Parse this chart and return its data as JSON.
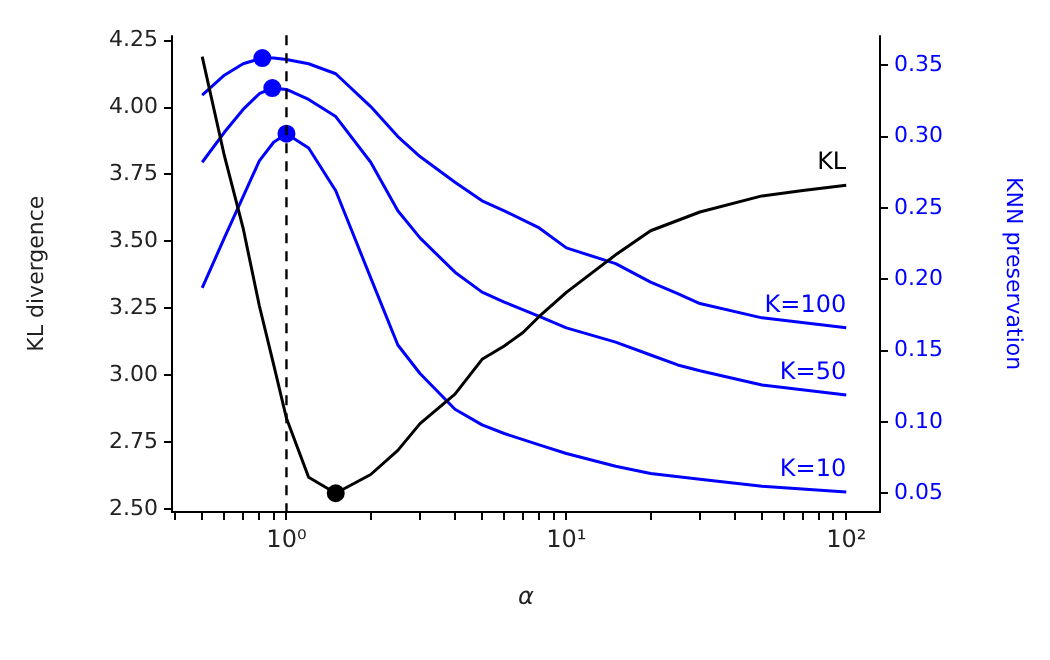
{
  "chart_data": {
    "type": "line",
    "xlabel": "α",
    "ylabel": "KL divergence",
    "y2label": "KNN preservation",
    "log": "x",
    "grid": false,
    "legend": false,
    "marker": "none",
    "line_style": "solid",
    "xlim": [
      0.39,
      132
    ],
    "ylim": [
      2.49,
      4.27
    ],
    "y2lim": [
      0.037,
      0.371
    ],
    "xticks": [
      {
        "value": 0.4,
        "label": null
      },
      {
        "value": 0.5,
        "label": null
      },
      {
        "value": 0.6,
        "label": null
      },
      {
        "value": 0.7,
        "label": null
      },
      {
        "value": 0.8,
        "label": null
      },
      {
        "value": 0.9,
        "label": null
      },
      {
        "value": 1,
        "label": "10⁰"
      },
      {
        "value": 2,
        "label": null
      },
      {
        "value": 3,
        "label": null
      },
      {
        "value": 4,
        "label": null
      },
      {
        "value": 5,
        "label": null
      },
      {
        "value": 6,
        "label": null
      },
      {
        "value": 7,
        "label": null
      },
      {
        "value": 8,
        "label": null
      },
      {
        "value": 9,
        "label": null
      },
      {
        "value": 10,
        "label": "10¹"
      },
      {
        "value": 20,
        "label": null
      },
      {
        "value": 30,
        "label": null
      },
      {
        "value": 40,
        "label": null
      },
      {
        "value": 50,
        "label": null
      },
      {
        "value": 60,
        "label": null
      },
      {
        "value": 70,
        "label": null
      },
      {
        "value": 80,
        "label": null
      },
      {
        "value": 90,
        "label": null
      },
      {
        "value": 100,
        "label": "10²"
      }
    ],
    "yticks": [
      {
        "value": 2.5,
        "label": "2.50"
      },
      2.75,
      {
        "value": 3.0,
        "label": "3.00"
      },
      3.25,
      {
        "value": 3.5,
        "label": "3.50"
      },
      3.75,
      {
        "value": 4.0,
        "label": "4.00"
      },
      4.25
    ],
    "y2ticks": [
      0.05,
      {
        "value": 0.1,
        "label": "0.10"
      },
      0.15,
      {
        "value": 0.2,
        "label": "0.20"
      },
      0.25,
      {
        "value": 0.3,
        "label": "0.30"
      },
      0.35
    ],
    "ref_lines": [
      {
        "axis": "x",
        "value": 1,
        "color": "#000000",
        "line_style": "dashed"
      }
    ],
    "series": [
      {
        "name": "KL",
        "color": "#000000",
        "x": [
          0.5,
          0.6,
          0.7,
          0.8,
          0.9,
          1,
          1.2,
          1.5,
          2,
          2.5,
          3,
          4,
          5,
          6,
          7,
          8,
          10,
          15,
          20,
          30,
          50,
          70,
          100
        ],
        "values": [
          4.19,
          3.82,
          3.55,
          3.26,
          3.04,
          2.84,
          2.62,
          2.56,
          2.63,
          2.72,
          2.82,
          2.93,
          3.06,
          3.11,
          3.16,
          3.22,
          3.31,
          3.45,
          3.54,
          3.61,
          3.67,
          3.69,
          3.71
        ]
      },
      {
        "name": "K=100",
        "axis": "y2",
        "color": "#0000ff",
        "x": [
          0.5,
          0.6,
          0.7,
          0.82,
          0.9,
          1,
          1.2,
          1.5,
          2,
          2.5,
          3,
          4,
          5,
          6,
          8,
          10,
          15,
          20,
          25,
          30,
          50,
          100
        ],
        "values": [
          0.329,
          0.343,
          0.351,
          0.355,
          0.355,
          0.354,
          0.351,
          0.344,
          0.321,
          0.3,
          0.286,
          0.268,
          0.255,
          0.248,
          0.236,
          0.222,
          0.211,
          0.198,
          0.19,
          0.183,
          0.173,
          0.166
        ]
      },
      {
        "name": "K=50",
        "axis": "y2",
        "color": "#0000ff",
        "x": [
          0.5,
          0.6,
          0.7,
          0.8,
          0.89,
          1,
          1.2,
          1.5,
          2,
          2.5,
          3,
          4,
          5,
          6,
          8,
          10,
          15,
          20,
          25,
          30,
          50,
          100
        ],
        "values": [
          0.282,
          0.303,
          0.319,
          0.33,
          0.334,
          0.333,
          0.326,
          0.314,
          0.282,
          0.248,
          0.229,
          0.205,
          0.191,
          0.184,
          0.174,
          0.166,
          0.156,
          0.147,
          0.14,
          0.136,
          0.126,
          0.119
        ]
      },
      {
        "name": "K=10",
        "axis": "y2",
        "color": "#0000ff",
        "x": [
          0.5,
          0.6,
          0.7,
          0.8,
          0.9,
          1,
          1.2,
          1.5,
          2,
          2.5,
          3,
          4,
          5,
          6,
          8,
          10,
          15,
          20,
          30,
          50,
          100
        ],
        "values": [
          0.194,
          0.229,
          0.258,
          0.283,
          0.296,
          0.302,
          0.292,
          0.262,
          0.201,
          0.154,
          0.134,
          0.109,
          0.098,
          0.092,
          0.084,
          0.078,
          0.069,
          0.064,
          0.06,
          0.055,
          0.051
        ]
      },
      {
        "type": "scatter",
        "axis": "y2",
        "color": "#0000ff",
        "marker": "circle",
        "x": [
          0.82,
          0.89,
          1
        ],
        "values": [
          0.355,
          0.334,
          0.302
        ]
      },
      {
        "type": "scatter",
        "color": "#000000",
        "marker": "circle",
        "x": [
          1.5
        ],
        "values": [
          2.56
        ]
      }
    ]
  }
}
